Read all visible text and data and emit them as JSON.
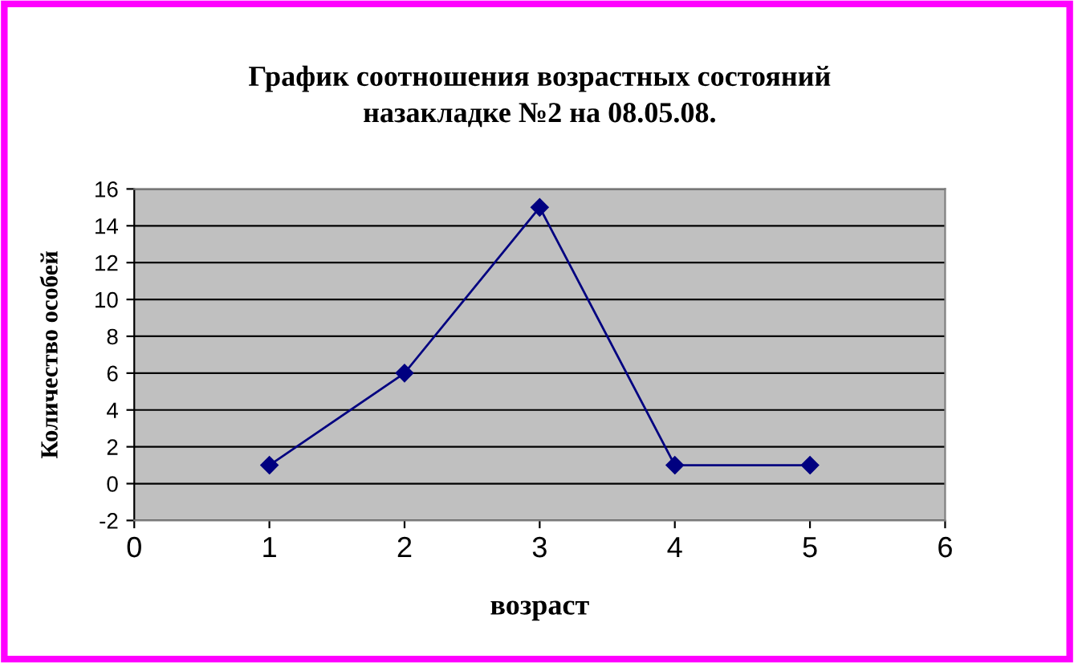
{
  "chart_data": {
    "type": "line",
    "title": "График соотношения возрастных состояний\nназакладке №2 на 08.05.08.",
    "xlabel": "возраст",
    "ylabel": "Количество особей",
    "x": [
      1,
      2,
      3,
      4,
      5
    ],
    "series": [
      {
        "color": "#000080",
        "values": [
          1,
          6,
          15,
          1,
          1
        ]
      }
    ],
    "xlim": [
      0,
      6
    ],
    "xticks": [
      0,
      1,
      2,
      3,
      4,
      5,
      6
    ],
    "ylim": [
      -2,
      16
    ],
    "yticks": [
      -2,
      0,
      2,
      4,
      6,
      8,
      10,
      12,
      14,
      16
    ],
    "grid": "y",
    "legend": false,
    "marker": "diamond",
    "line_style": "solid"
  }
}
